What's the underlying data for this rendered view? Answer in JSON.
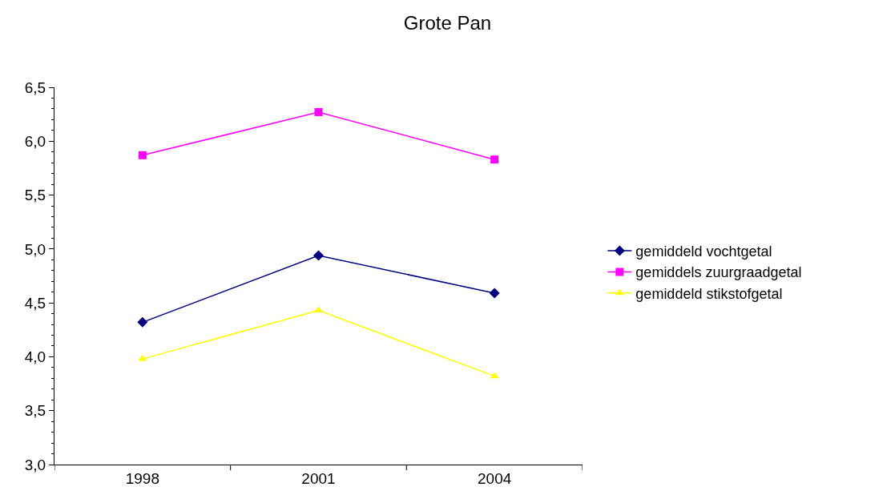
{
  "chart_data": {
    "type": "line",
    "title": "Grote Pan",
    "categories": [
      "1998",
      "2001",
      "2004"
    ],
    "series": [
      {
        "name": "gemiddeld vochtgetal",
        "color": "#000080",
        "marker": "diamond",
        "values": [
          4.32,
          4.94,
          4.59
        ]
      },
      {
        "name": "gemiddels zuurgraadgetal",
        "color": "#ff00ff",
        "marker": "square",
        "values": [
          5.87,
          6.27,
          5.83
        ]
      },
      {
        "name": "gemiddeld stikstofgetal",
        "color": "#ffff00",
        "marker": "triangle",
        "values": [
          3.98,
          4.43,
          3.82
        ]
      }
    ],
    "ylim": [
      3.0,
      6.5
    ],
    "yticks": [
      {
        "value": 3.0,
        "label": "3,0"
      },
      {
        "value": 3.5,
        "label": "3,5"
      },
      {
        "value": 4.0,
        "label": "4,0"
      },
      {
        "value": 4.5,
        "label": "4,5"
      },
      {
        "value": 5.0,
        "label": "5,0"
      },
      {
        "value": 5.5,
        "label": "5,5"
      },
      {
        "value": 6.0,
        "label": "6,0"
      },
      {
        "value": 6.5,
        "label": "6,5"
      }
    ],
    "legend": "right",
    "line_style": "solid"
  }
}
